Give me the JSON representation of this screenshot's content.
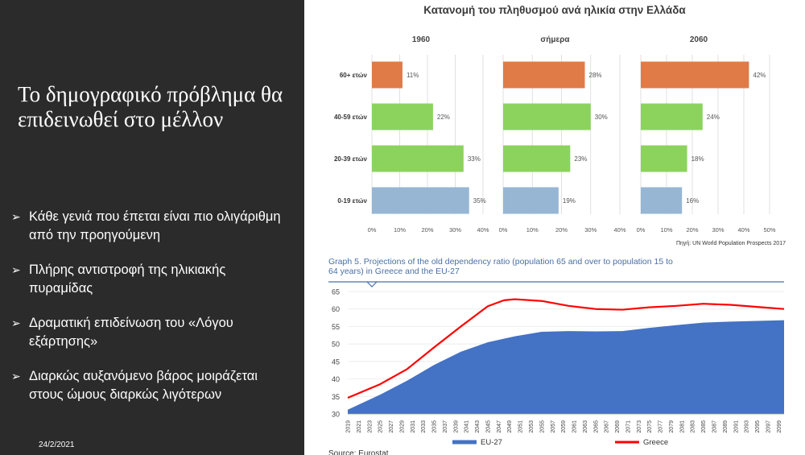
{
  "slide": {
    "title": "Το δημογραφικό πρόβλημα θα επιδεινωθεί στο μέλλον",
    "bullets": [
      "Κάθε γενιά που έπεται είναι πιο ολιγάριθμη από την προηγούμενη",
      "Πλήρης αντιστροφή της ηλικιακής πυραμίδας",
      "Δραματική επιδείνωση του «Λόγου εξάρτησης»",
      "Διαρκώς αυξανόμενο βάρος μοιράζεται στους ώμους διαρκώς λιγότερων"
    ],
    "bullet_icon": "arrow-right-icon",
    "date": "24/2/2021"
  },
  "colors": {
    "background_dark": "#2b2b2b",
    "age_60_plus": "#e07b48",
    "age_middle": "#8cd35e",
    "age_0_19": "#96b6d4",
    "eu27": "#4472c4",
    "greece": "#ff0000"
  },
  "chart_data": [
    {
      "type": "bar",
      "orientation": "horizontal",
      "title": "Κατανομή του πληθυσμού ανά ηλικία στην Ελλάδα",
      "source": "Πηγή: UN World Population Prospects 2017",
      "categories": [
        "60+ ετών",
        "40-59 ετών",
        "20-39 ετών",
        "0-19 ετών"
      ],
      "panels": [
        {
          "name": "1960",
          "values": [
            11,
            22,
            33,
            35
          ],
          "labels": [
            "11%",
            "22%",
            "33%",
            "35%"
          ],
          "xlim": [
            0,
            40
          ],
          "ticks": [
            "0%",
            "10%",
            "20%",
            "30%",
            "40%"
          ]
        },
        {
          "name": "σήμερα",
          "values": [
            28,
            30,
            23,
            19
          ],
          "labels": [
            "28%",
            "30%",
            "23%",
            "19%"
          ],
          "xlim": [
            0,
            40
          ],
          "ticks": [
            "0%",
            "10%",
            "20%",
            "30%",
            "40%"
          ]
        },
        {
          "name": "2060",
          "values": [
            42,
            24,
            18,
            16
          ],
          "labels": [
            "42%",
            "24%",
            "18%",
            "16%"
          ],
          "xlim": [
            0,
            50
          ],
          "ticks": [
            "0%",
            "10%",
            "20%",
            "30%",
            "40%",
            "50%"
          ]
        }
      ],
      "grid": "vertical"
    },
    {
      "type": "area",
      "title": "Graph 5. Projections of the old dependency ratio (population 65 and over to population 15 to 64 years) in Greece and the EU-27",
      "source": "Source: Eurostat",
      "x_range": [
        2019,
        2100
      ],
      "x_ticks": [
        2019,
        2021,
        2023,
        2025,
        2027,
        2029,
        2031,
        2033,
        2035,
        2037,
        2039,
        2041,
        2043,
        2045,
        2047,
        2049,
        2051,
        2053,
        2055,
        2057,
        2059,
        2061,
        2063,
        2065,
        2067,
        2069,
        2071,
        2073,
        2075,
        2077,
        2079,
        2081,
        2083,
        2085,
        2087,
        2089,
        2091,
        2093,
        2095,
        2097,
        2099
      ],
      "ylim": [
        30,
        65
      ],
      "y_ticks": [
        30,
        35,
        40,
        45,
        50,
        55,
        60,
        65
      ],
      "legend_position": "bottom",
      "series": [
        {
          "name": "EU-27",
          "type": "area",
          "x": [
            2019,
            2025,
            2030,
            2035,
            2040,
            2045,
            2050,
            2055,
            2060,
            2065,
            2070,
            2075,
            2080,
            2085,
            2090,
            2095,
            2100
          ],
          "values": [
            31.2,
            35.5,
            39.5,
            44.0,
            47.8,
            50.5,
            52.2,
            53.5,
            53.7,
            53.6,
            53.7,
            54.6,
            55.4,
            56.1,
            56.4,
            56.6,
            56.8
          ]
        },
        {
          "name": "Greece",
          "type": "line",
          "x": [
            2019,
            2025,
            2030,
            2035,
            2040,
            2045,
            2048,
            2050,
            2055,
            2060,
            2065,
            2070,
            2075,
            2080,
            2085,
            2090,
            2095,
            2100
          ],
          "values": [
            34.6,
            38.5,
            42.8,
            49.0,
            55.0,
            60.8,
            62.5,
            62.8,
            62.3,
            60.9,
            60.0,
            59.8,
            60.5,
            60.9,
            61.5,
            61.2,
            60.6,
            60.0
          ]
        }
      ]
    }
  ]
}
